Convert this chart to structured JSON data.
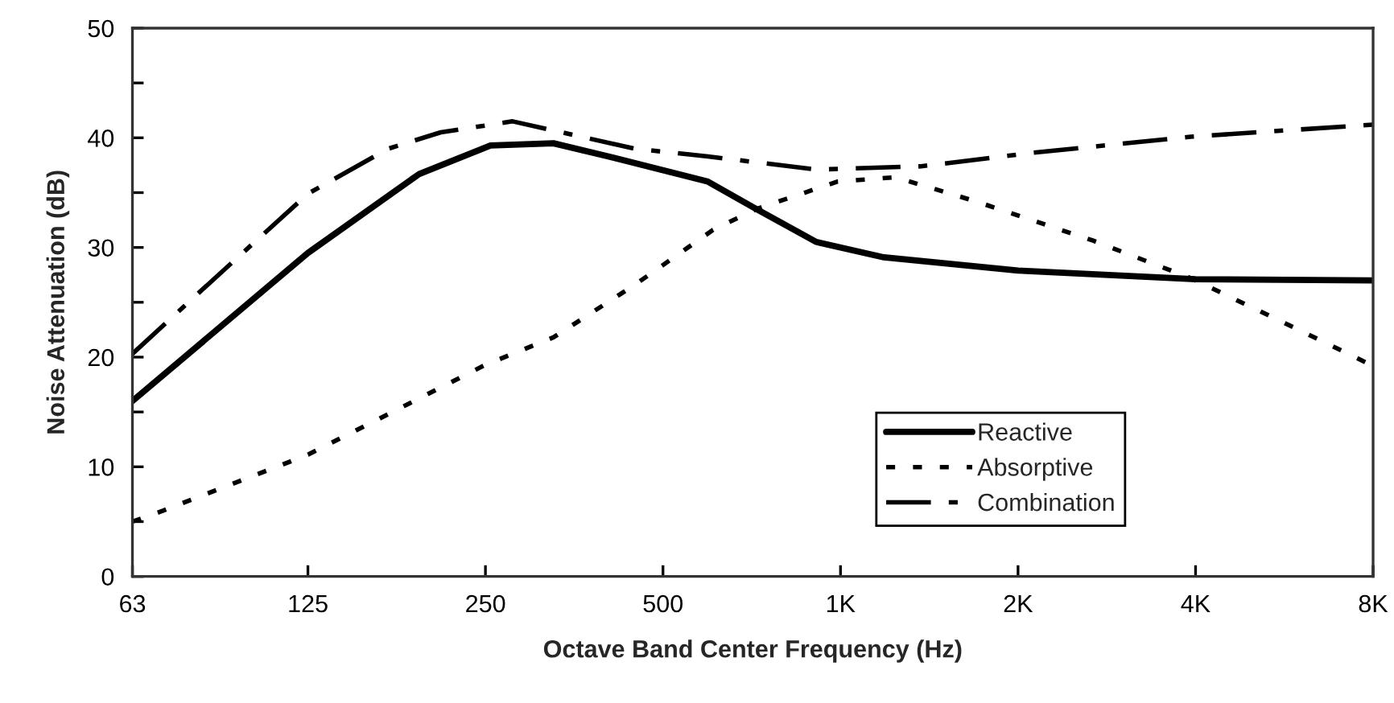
{
  "chart_data": {
    "type": "line",
    "xlabel": "Octave Band Center Frequency (Hz)",
    "ylabel": "Noise Attenuation (dB)",
    "log": "x",
    "xlim": [
      63,
      8000
    ],
    "xticks": [
      63,
      125,
      250,
      500,
      {
        "value": 1000,
        "label": "1K"
      },
      {
        "value": 2000,
        "label": "2K"
      },
      {
        "value": 4000,
        "label": "4K"
      },
      {
        "value": 8000,
        "label": "8K"
      }
    ],
    "ylim": [
      0,
      50
    ],
    "yticks": [
      0,
      {
        "value": 5,
        "label": null
      },
      10,
      {
        "value": 15,
        "label": null
      },
      20,
      {
        "value": 25,
        "label": null
      },
      30,
      {
        "value": 35,
        "label": null
      },
      40,
      {
        "value": 45,
        "label": null
      },
      50
    ],
    "grid": false,
    "legend": "bottom right",
    "marker": "none",
    "series": [
      {
        "name": "Reactive",
        "color": "#000000",
        "line_style": "solid",
        "x": [
          63,
          125,
          193,
          255,
          326,
          404,
          596,
          720,
          910,
          1185,
          2000,
          4000,
          8000
        ],
        "values": [
          16,
          29.5,
          36.7,
          39.3,
          39.5,
          38.3,
          36,
          33.5,
          30.5,
          29.1,
          27.9,
          27.1,
          27
        ]
      },
      {
        "name": "Absorptive",
        "color": "#000000",
        "line_style": "dotted",
        "x": [
          63,
          71,
          125,
          171,
          250,
          326,
          448,
          608,
          720,
          987,
          1239,
          1697,
          2688,
          3925,
          5620,
          8000
        ],
        "values": [
          5,
          6,
          11.1,
          14.8,
          19.3,
          21.8,
          26.6,
          31.6,
          33.5,
          36,
          36.4,
          34.2,
          30.6,
          27.2,
          23.2,
          19.2
        ]
      },
      {
        "name": "Combination",
        "color": "#000000",
        "line_style": "dashdot",
        "x": [
          63,
          81,
          125,
          171,
          210,
          278,
          448,
          596,
          910,
          1370,
          2090,
          3925,
          8000
        ],
        "values": [
          20.3,
          25.7,
          34.9,
          39,
          40.5,
          41.5,
          39,
          38.3,
          37.1,
          37.4,
          38.6,
          40.1,
          41.2
        ]
      }
    ]
  }
}
